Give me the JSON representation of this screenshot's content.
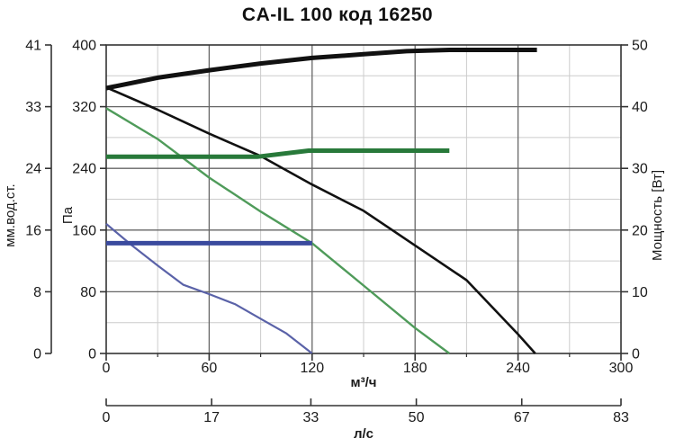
{
  "title": "CA-IL 100 код 16250",
  "chart_data": {
    "type": "line",
    "title": "CA-IL 100 код 16250",
    "grid": "on",
    "legend": "none",
    "axes": {
      "x_bottom": {
        "label": "м³/ч",
        "range": [
          0,
          300
        ],
        "ticks": [
          0,
          60,
          120,
          180,
          240,
          300
        ],
        "minor_step": 30
      },
      "x_secondary": {
        "label": "л/с",
        "range": [
          0,
          83
        ],
        "ticks": [
          0,
          17,
          33,
          50,
          67,
          83
        ]
      },
      "y_pa": {
        "label": "Па",
        "range": [
          0,
          400
        ],
        "ticks": [
          0,
          80,
          160,
          240,
          320,
          400
        ],
        "minor_step": 40
      },
      "y_mm": {
        "label": "мм.вод.ст.",
        "range": [
          0,
          41
        ],
        "ticks": [
          0,
          8,
          16,
          24,
          33,
          41
        ],
        "tick_anchor_pa": [
          0,
          80,
          160,
          240,
          320,
          400
        ]
      },
      "y_power": {
        "label": "Мощность [Вт]",
        "range": [
          0,
          50
        ],
        "ticks": [
          0,
          10,
          20,
          30,
          40,
          50
        ]
      }
    },
    "series": [
      {
        "name": "power-curve",
        "desc": "power vs flow, right axis (Вт)",
        "y_axis": "W",
        "color": "#111111",
        "width": 5,
        "points": [
          [
            0,
            43
          ],
          [
            30,
            44.7
          ],
          [
            60,
            45.9
          ],
          [
            90,
            47
          ],
          [
            120,
            47.9
          ],
          [
            150,
            48.5
          ],
          [
            175,
            49
          ],
          [
            200,
            49.2
          ],
          [
            251,
            49.2
          ]
        ]
      },
      {
        "name": "pressure-curve-high-speed",
        "desc": "pressure vs flow, max speed (Па)",
        "y_axis": "Pa",
        "color": "#111111",
        "width": 2.6,
        "points": [
          [
            0,
            345
          ],
          [
            30,
            316
          ],
          [
            60,
            285
          ],
          [
            90,
            256
          ],
          [
            120,
            219
          ],
          [
            150,
            185
          ],
          [
            180,
            140
          ],
          [
            210,
            95
          ],
          [
            240,
            25
          ],
          [
            250,
            0
          ]
        ]
      },
      {
        "name": "pressure-curve-mid-speed",
        "desc": "pressure vs flow, mid speed (Па)",
        "y_axis": "Pa",
        "color": "#4f9b5a",
        "width": 2.4,
        "points": [
          [
            0,
            318
          ],
          [
            30,
            278
          ],
          [
            60,
            228
          ],
          [
            90,
            184
          ],
          [
            120,
            143
          ],
          [
            150,
            88
          ],
          [
            180,
            33
          ],
          [
            200,
            0
          ]
        ]
      },
      {
        "name": "level-line-mid",
        "desc": "horizontal marker line, mid speed (Па)",
        "y_axis": "Pa",
        "color": "#28793a",
        "width": 5,
        "points": [
          [
            0,
            255
          ],
          [
            88,
            255
          ],
          [
            118,
            263
          ],
          [
            200,
            263
          ]
        ]
      },
      {
        "name": "pressure-curve-low-speed",
        "desc": "pressure vs flow, low speed (Па)",
        "y_axis": "Pa",
        "color": "#5a62a8",
        "width": 2.2,
        "points": [
          [
            0,
            168
          ],
          [
            15,
            140
          ],
          [
            30,
            114
          ],
          [
            45,
            89
          ],
          [
            60,
            77
          ],
          [
            75,
            64
          ],
          [
            90,
            45
          ],
          [
            105,
            26
          ],
          [
            120,
            0
          ]
        ]
      },
      {
        "name": "level-line-low",
        "desc": "horizontal marker line, low speed (Па)",
        "y_axis": "Pa",
        "color": "#3a4a9e",
        "width": 5,
        "points": [
          [
            0,
            143
          ],
          [
            120,
            143
          ]
        ]
      }
    ],
    "colors": {
      "grid_major": "#666666",
      "grid_minor": "#cccccc",
      "axis": "#333333",
      "text": "#1a1a1a"
    }
  }
}
